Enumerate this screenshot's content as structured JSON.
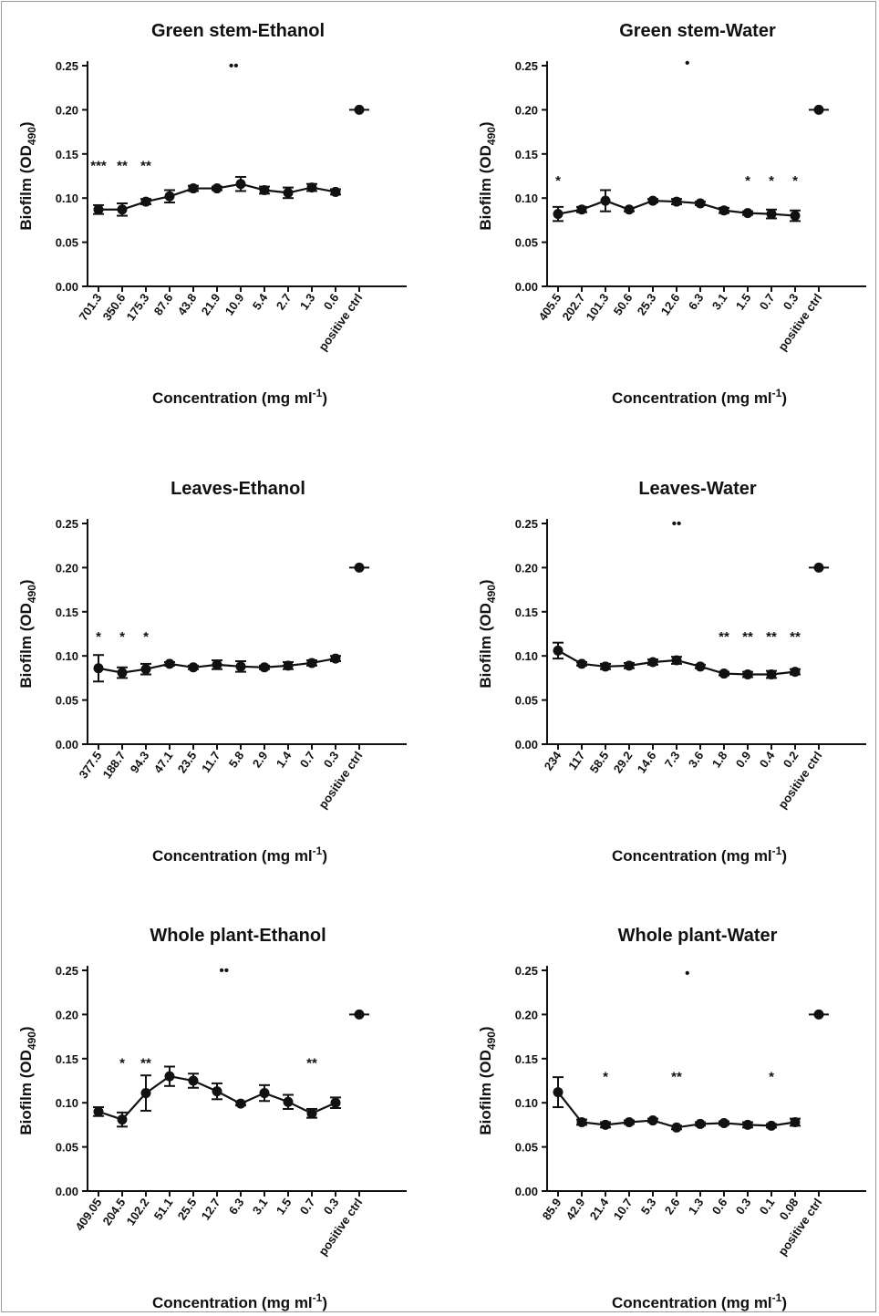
{
  "chart_data": [
    {
      "type": "line",
      "title": "Green stem-Ethanol",
      "xlabel": "Concentration (mg ml",
      "xlabel_sup": "-1",
      "xlabel_tail": ")",
      "ylabel": "Biofilm (OD",
      "ylabel_sub": "490",
      "ylabel_tail": ")",
      "ylim": [
        0,
        0.25
      ],
      "yticks": [
        "0.00",
        "0.05",
        "0.10",
        "0.15",
        "0.20",
        "0.25"
      ],
      "categories": [
        "701.3",
        "350.6",
        "175.3",
        "87.6",
        "43.8",
        "21.9",
        "10.9",
        "5.4",
        "2.7",
        "1.3",
        "0.6",
        "positive ctrl"
      ],
      "values": [
        0.087,
        0.087,
        0.096,
        0.102,
        0.111,
        0.111,
        0.116,
        0.109,
        0.106,
        0.112,
        0.107,
        0.2
      ],
      "errors": [
        0.005,
        0.007,
        0.003,
        0.007,
        0.003,
        0.002,
        0.008,
        0.004,
        0.006,
        0.004,
        0.003,
        0.0
      ],
      "positive_index": 11,
      "significance": [
        {
          "index": 0,
          "label": "***",
          "y": 0.14
        },
        {
          "index": 1,
          "label": "**",
          "y": 0.14
        },
        {
          "index": 2,
          "label": "**",
          "y": 0.14
        },
        {
          "index": 6,
          "label": "••",
          "y": 0.253,
          "dx": -0.3
        }
      ]
    },
    {
      "type": "line",
      "title": "Green stem-Water",
      "xlabel": "Concentration (mg ml",
      "xlabel_sup": "-1",
      "xlabel_tail": ")",
      "ylabel": "Biofilm (OD",
      "ylabel_sub": "490",
      "ylabel_tail": ")",
      "ylim": [
        0,
        0.25
      ],
      "yticks": [
        "0.00",
        "0.05",
        "0.10",
        "0.15",
        "0.20",
        "0.25"
      ],
      "categories": [
        "405.5",
        "202.7",
        "101.3",
        "50.6",
        "25.3",
        "12.6",
        "6.3",
        "3.1",
        "1.5",
        "0.7",
        "0.3",
        "positive ctrl"
      ],
      "values": [
        0.082,
        0.087,
        0.097,
        0.087,
        0.097,
        0.096,
        0.094,
        0.086,
        0.083,
        0.082,
        0.08,
        0.2
      ],
      "errors": [
        0.008,
        0.003,
        0.012,
        0.002,
        0.002,
        0.003,
        0.002,
        0.003,
        0.002,
        0.005,
        0.006,
        0.0
      ],
      "positive_index": 11,
      "significance": [
        {
          "index": 0,
          "label": "*",
          "y": 0.123
        },
        {
          "index": 8,
          "label": "*",
          "y": 0.123
        },
        {
          "index": 9,
          "label": "*",
          "y": 0.123
        },
        {
          "index": 10,
          "label": "*",
          "y": 0.123
        },
        {
          "index": 5,
          "label": "•",
          "y": 0.256,
          "dx": 0.45
        }
      ]
    },
    {
      "type": "line",
      "title": "Leaves-Ethanol",
      "xlabel": "Concentration (mg ml",
      "xlabel_sup": "-1",
      "xlabel_tail": ")",
      "ylabel": "Biofilm (OD",
      "ylabel_sub": "490",
      "ylabel_tail": ")",
      "ylim": [
        0,
        0.25
      ],
      "yticks": [
        "0.00",
        "0.05",
        "0.10",
        "0.15",
        "0.20",
        "0.25"
      ],
      "categories": [
        "377.5",
        "188.7",
        "94.3",
        "47.1",
        "23.5",
        "11.7",
        "5.8",
        "2.9",
        "1.4",
        "0.7",
        "0.3",
        "positive ctrl"
      ],
      "values": [
        0.086,
        0.081,
        0.085,
        0.091,
        0.087,
        0.09,
        0.088,
        0.087,
        0.089,
        0.092,
        0.097,
        0.2
      ],
      "errors": [
        0.015,
        0.006,
        0.006,
        0.002,
        0.002,
        0.005,
        0.006,
        0.002,
        0.004,
        0.003,
        0.003,
        0.0
      ],
      "positive_index": 11,
      "significance": [
        {
          "index": 0,
          "label": "*",
          "y": 0.125
        },
        {
          "index": 1,
          "label": "*",
          "y": 0.125
        },
        {
          "index": 2,
          "label": "*",
          "y": 0.125
        }
      ]
    },
    {
      "type": "line",
      "title": "Leaves-Water",
      "xlabel": "Concentration (mg ml",
      "xlabel_sup": "-1",
      "xlabel_tail": ")",
      "ylabel": "Biofilm (OD",
      "ylabel_sub": "490",
      "ylabel_tail": ")",
      "ylim": [
        0,
        0.25
      ],
      "yticks": [
        "0.00",
        "0.05",
        "0.10",
        "0.15",
        "0.20",
        "0.25"
      ],
      "categories": [
        "234",
        "117",
        "58.5",
        "29.2",
        "14.6",
        "7.3",
        "3.6",
        "1.8",
        "0.9",
        "0.4",
        "0.2",
        "positive ctrl"
      ],
      "values": [
        0.106,
        0.091,
        0.088,
        0.089,
        0.093,
        0.095,
        0.088,
        0.08,
        0.079,
        0.079,
        0.082,
        0.2
      ],
      "errors": [
        0.009,
        0.002,
        0.003,
        0.003,
        0.003,
        0.004,
        0.002,
        0.002,
        0.003,
        0.004,
        0.003,
        0.0
      ],
      "positive_index": 11,
      "significance": [
        {
          "index": 7,
          "label": "**",
          "y": 0.125
        },
        {
          "index": 8,
          "label": "**",
          "y": 0.125
        },
        {
          "index": 9,
          "label": "**",
          "y": 0.125
        },
        {
          "index": 10,
          "label": "**",
          "y": 0.125
        },
        {
          "index": 5,
          "label": "••",
          "y": 0.253
        }
      ]
    },
    {
      "type": "line",
      "title": "Whole plant-Ethanol",
      "xlabel": "Concentration (mg ml",
      "xlabel_sup": "-1",
      "xlabel_tail": ")",
      "ylabel": "Biofilm (OD",
      "ylabel_sub": "490",
      "ylabel_tail": ")",
      "ylim": [
        0,
        0.25
      ],
      "yticks": [
        "0.00",
        "0.05",
        "0.10",
        "0.15",
        "0.20",
        "0.25"
      ],
      "categories": [
        "409.05",
        "204.5",
        "102.2",
        "51.1",
        "25.5",
        "12.7",
        "6.3",
        "3.1",
        "1.5",
        "0.7",
        "0.3",
        "positive ctrl"
      ],
      "values": [
        0.09,
        0.081,
        0.111,
        0.13,
        0.125,
        0.113,
        0.099,
        0.111,
        0.101,
        0.088,
        0.1,
        0.2
      ],
      "errors": [
        0.005,
        0.008,
        0.02,
        0.011,
        0.008,
        0.009,
        0.002,
        0.009,
        0.008,
        0.005,
        0.006,
        0.0
      ],
      "positive_index": 11,
      "significance": [
        {
          "index": 1,
          "label": "*",
          "y": 0.148
        },
        {
          "index": 2,
          "label": "**",
          "y": 0.148
        },
        {
          "index": 9,
          "label": "**",
          "y": 0.148
        },
        {
          "index": 5,
          "label": "••",
          "y": 0.253,
          "dx": 0.3
        }
      ]
    },
    {
      "type": "line",
      "title": "Whole plant-Water",
      "xlabel": "Concentration (mg ml",
      "xlabel_sup": "-1",
      "xlabel_tail": ")",
      "ylabel": "Biofilm (OD",
      "ylabel_sub": "490",
      "ylabel_tail": ")",
      "ylim": [
        0,
        0.25
      ],
      "yticks": [
        "0.00",
        "0.05",
        "0.10",
        "0.15",
        "0.20",
        "0.25"
      ],
      "categories": [
        "85.9",
        "42.9",
        "21.4",
        "10.7",
        "5.3",
        "2.6",
        "1.3",
        "0.6",
        "0.3",
        "0.1",
        "0.08",
        "positive ctrl"
      ],
      "values": [
        0.112,
        0.078,
        0.075,
        0.078,
        0.08,
        0.072,
        0.076,
        0.077,
        0.075,
        0.074,
        0.078,
        0.2
      ],
      "errors": [
        0.017,
        0.003,
        0.003,
        0.002,
        0.002,
        0.002,
        0.002,
        0.002,
        0.003,
        0.002,
        0.004,
        0.0
      ],
      "positive_index": 11,
      "significance": [
        {
          "index": 2,
          "label": "*",
          "y": 0.133
        },
        {
          "index": 5,
          "label": "**",
          "y": 0.133
        },
        {
          "index": 9,
          "label": "*",
          "y": 0.133
        },
        {
          "index": 5,
          "label": "•",
          "y": 0.25,
          "dx": 0.45
        }
      ]
    }
  ]
}
